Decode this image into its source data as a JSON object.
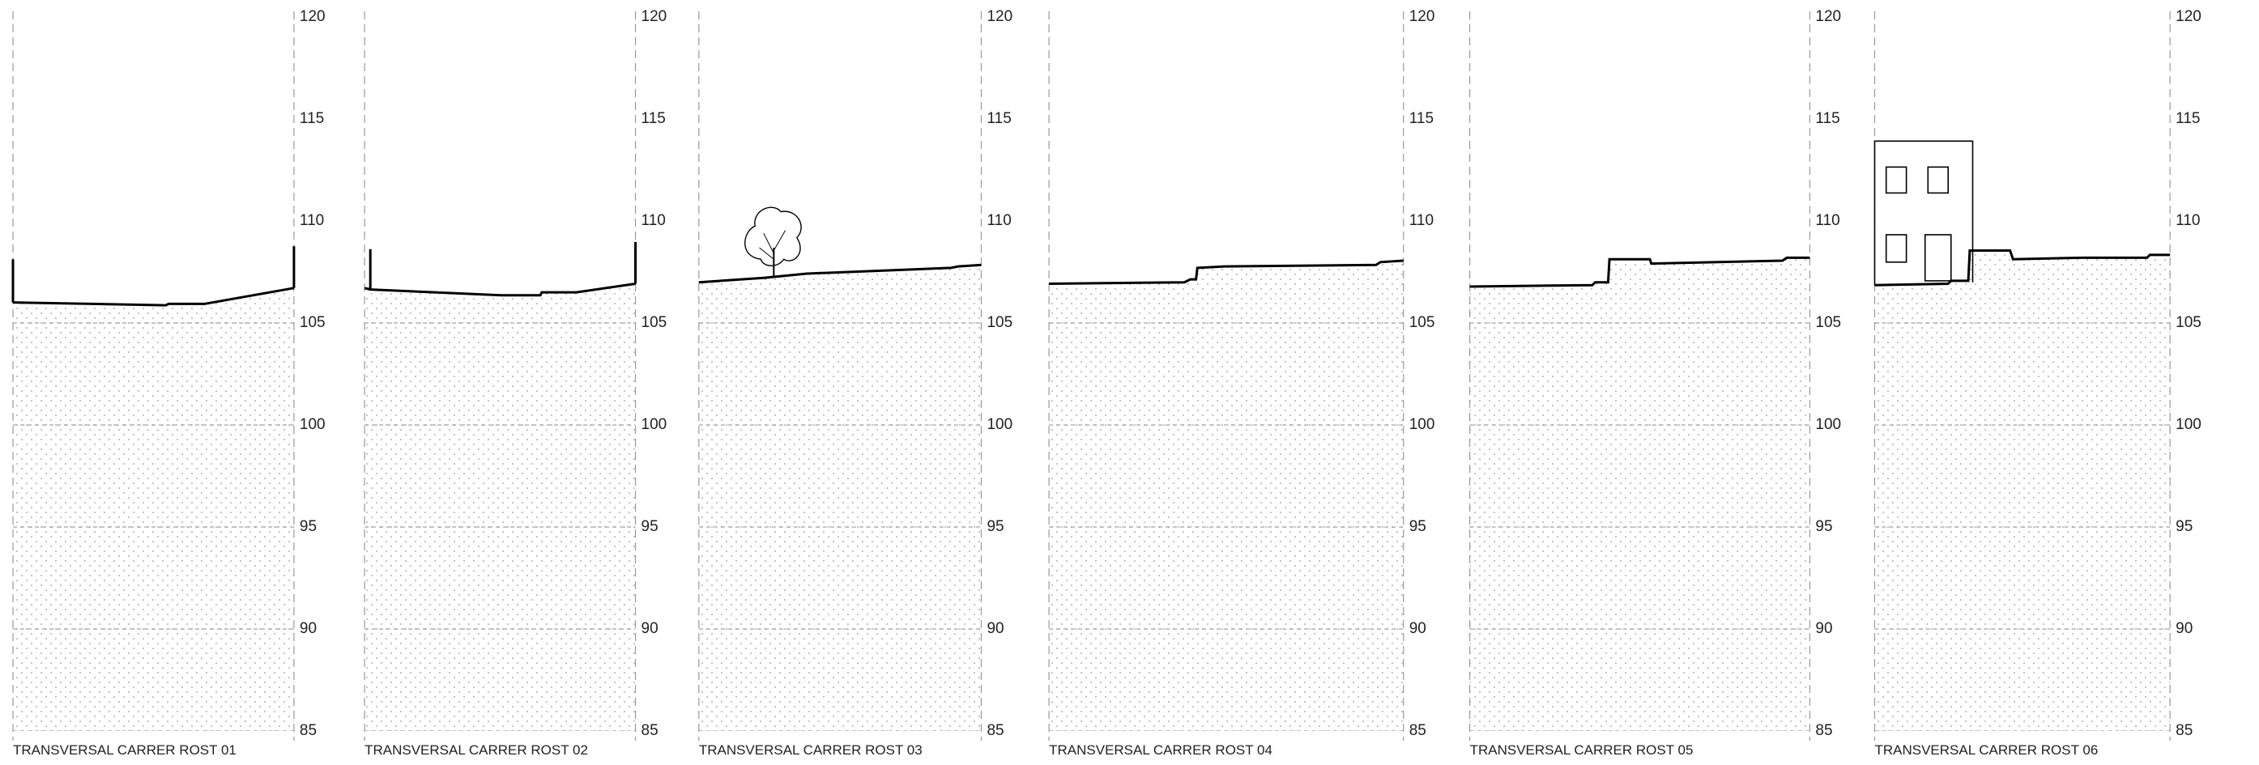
{
  "sections": [
    {
      "label": "TRANSVERSAL CARRER ROST 01",
      "ticks": [
        120,
        115,
        110,
        105,
        100,
        95,
        90,
        85
      ]
    },
    {
      "label": "TRANSVERSAL CARRER ROST 02",
      "ticks": [
        120,
        115,
        110,
        105,
        100,
        95,
        90,
        85
      ]
    },
    {
      "label": "TRANSVERSAL CARRER ROST 03",
      "ticks": [
        120,
        115,
        110,
        105,
        100,
        95,
        90,
        85
      ]
    },
    {
      "label": "TRANSVERSAL CARRER ROST 04",
      "ticks": [
        120,
        115,
        110,
        105,
        100,
        95,
        90,
        85
      ]
    },
    {
      "label": "TRANSVERSAL CARRER ROST 05",
      "ticks": [
        120,
        115,
        110,
        105,
        100,
        95,
        90,
        85
      ]
    },
    {
      "label": "TRANSVERSAL CARRER ROST 06",
      "ticks": [
        120,
        115,
        110,
        105,
        100,
        95,
        90,
        85
      ]
    }
  ]
}
